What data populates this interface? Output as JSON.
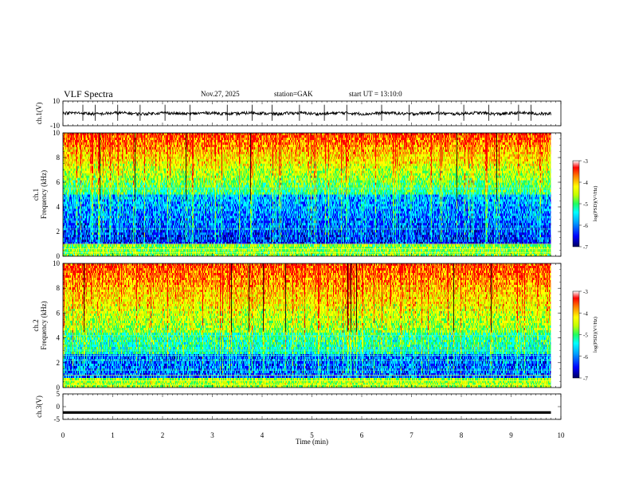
{
  "header": {
    "title": "VLF  Spectra",
    "date": "Nov.27, 2025",
    "station": "station=GAK",
    "start": "start  UT  =   13:10:0"
  },
  "chart_data": [
    {
      "type": "line",
      "panel": "ch1-waveform",
      "ylabel": "ch.1(V)",
      "x_range": [
        0,
        10
      ],
      "ylim": [
        -10,
        10
      ],
      "ytick_labels": [
        "10",
        "-10"
      ],
      "data_end_min": 9.8,
      "baseline_value": 0,
      "spike_times_min": [
        0.4,
        0.65,
        1.1,
        1.55,
        2.05,
        2.55,
        3.3,
        3.8,
        4.2,
        4.75,
        5.25,
        5.7,
        6.4,
        6.95,
        7.55,
        8.05,
        8.55,
        9.15,
        9.4
      ]
    },
    {
      "type": "heatmap",
      "panel": "ch1-spectrogram",
      "ylabel": "ch.1 Frequency (kHz)",
      "ylabel_lines": [
        "ch.1",
        "Frequency (kHz)"
      ],
      "x_range": [
        0,
        10
      ],
      "ylim": [
        0,
        10
      ],
      "ytick_labels": [
        "0",
        "2",
        "4",
        "6",
        "8",
        "10"
      ],
      "data_end_min": 9.8,
      "colorbar": {
        "label": "log(PSD)(V²/Hz)",
        "range": [
          -7,
          -3
        ],
        "tick_labels": [
          "-3",
          "-4",
          "-5",
          "-6",
          "-7"
        ]
      }
    },
    {
      "type": "heatmap",
      "panel": "ch2-spectrogram",
      "ylabel": "ch.2 Frequency (kHz)",
      "ylabel_lines": [
        "ch.2",
        "Frequency (kHz)"
      ],
      "x_range": [
        0,
        10
      ],
      "ylim": [
        0,
        10
      ],
      "ytick_labels": [
        "0",
        "2",
        "4",
        "6",
        "8",
        "10"
      ],
      "data_end_min": 9.8,
      "colorbar": {
        "label": "log(PSD)(V²/Hz)",
        "range": [
          -7,
          -3
        ],
        "tick_labels": [
          "-3",
          "-4",
          "-5",
          "-6",
          "-7"
        ]
      }
    },
    {
      "type": "line",
      "panel": "ch3-waveform",
      "ylabel": "ch.3(V)",
      "x_range": [
        0,
        10
      ],
      "ylim": [
        -5,
        5
      ],
      "ytick_labels": [
        "5",
        "0",
        "-5"
      ],
      "data_end_min": 9.8,
      "baseline_value": -2.3
    }
  ],
  "x_axis": {
    "label": "Time  (min)",
    "tick_labels": [
      "0",
      "1",
      "2",
      "3",
      "4",
      "5",
      "6",
      "7",
      "8",
      "9",
      "10"
    ]
  },
  "colors": {
    "colormap": [
      "#000080",
      "#0000ff",
      "#00a0ff",
      "#00ffff",
      "#20ff60",
      "#c0ff00",
      "#ffff00",
      "#ff8000",
      "#ff0000"
    ],
    "frame": "#000000",
    "background": "#ffffff"
  }
}
